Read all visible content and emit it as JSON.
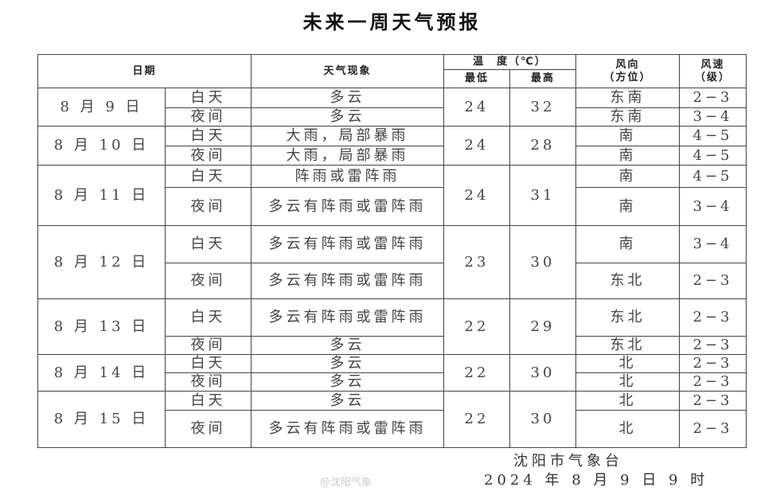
{
  "title": "未来一周天气预报",
  "headers": {
    "date": "日期",
    "weather": "天气现象",
    "temp": "温　度（℃）",
    "min": "最低",
    "max": "最高",
    "dir": "风向\n（方位）",
    "speed": "风速\n（级）"
  },
  "days": [
    {
      "date": "8 月 9 日",
      "min": "24",
      "max": "32",
      "periods": [
        {
          "p": "白天",
          "w": "多云",
          "d": "东南",
          "s": "2−3"
        },
        {
          "p": "夜间",
          "w": "多云",
          "d": "东南",
          "s": "3−4"
        }
      ]
    },
    {
      "date": "8 月 10 日",
      "min": "24",
      "max": "28",
      "periods": [
        {
          "p": "白天",
          "w": "大雨，局部暴雨",
          "d": "南",
          "s": "4−5"
        },
        {
          "p": "夜间",
          "w": "大雨，局部暴雨",
          "d": "南",
          "s": "4−5"
        }
      ]
    },
    {
      "date": "8 月 11 日",
      "min": "24",
      "max": "31",
      "periods": [
        {
          "p": "白天",
          "w": "阵雨或雷阵雨",
          "d": "南",
          "s": "4−5"
        },
        {
          "p": "夜间",
          "w": "多云有阵雨或雷阵雨",
          "d": "南",
          "s": "3−4"
        }
      ]
    },
    {
      "date": "8 月 12 日",
      "min": "23",
      "max": "30",
      "periods": [
        {
          "p": "白天",
          "w": "多云有阵雨或雷阵雨",
          "d": "南",
          "s": "3−4"
        },
        {
          "p": "夜间",
          "w": "多云有阵雨或雷阵雨",
          "d": "东北",
          "s": "2−3"
        }
      ]
    },
    {
      "date": "8 月 13 日",
      "min": "22",
      "max": "29",
      "periods": [
        {
          "p": "白天",
          "w": "多云有阵雨或雷阵雨",
          "d": "东北",
          "s": "2−3"
        },
        {
          "p": "夜间",
          "w": "多云",
          "d": "东北",
          "s": "2−3"
        }
      ]
    },
    {
      "date": "8 月 14 日",
      "min": "22",
      "max": "30",
      "periods": [
        {
          "p": "白天",
          "w": "多云",
          "d": "北",
          "s": "2−3"
        },
        {
          "p": "夜间",
          "w": "多云",
          "d": "北",
          "s": "2−3"
        }
      ]
    },
    {
      "date": "8 月 15 日",
      "min": "22",
      "max": "30",
      "periods": [
        {
          "p": "白天",
          "w": "多云",
          "d": "北",
          "s": "2−3"
        },
        {
          "p": "夜间",
          "w": "多云有阵雨或雷阵雨",
          "d": "北",
          "s": "2−3"
        }
      ]
    }
  ],
  "footer": {
    "issuer": "沈阳市气象台",
    "datetime": "2024 年 8 月 9 日 9 时"
  },
  "watermark": "@沈阳气象"
}
